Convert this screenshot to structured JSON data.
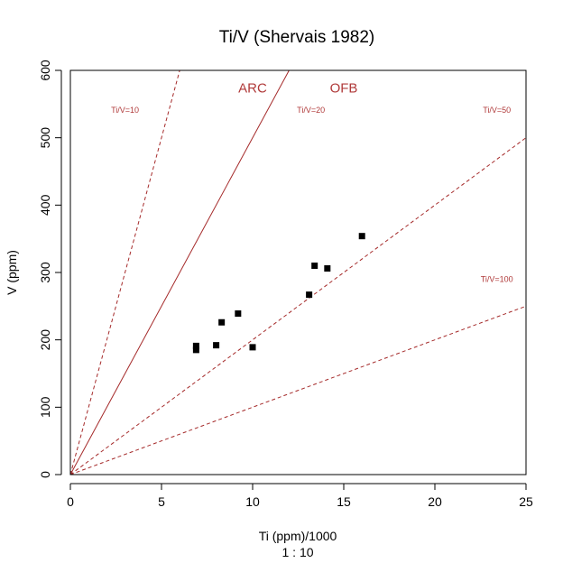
{
  "chart_data": {
    "type": "scatter",
    "title": "Ti/V (Shervais 1982)",
    "xlabel": "Ti (ppm)/1000",
    "xlabel_sub": "1 : 10",
    "ylabel": "V (ppm)",
    "xlim": [
      0,
      25
    ],
    "ylim": [
      0,
      600
    ],
    "xticks": [
      0,
      5,
      10,
      15,
      20,
      25
    ],
    "yticks": [
      0,
      100,
      200,
      300,
      400,
      500,
      600
    ],
    "grid": false,
    "colors": {
      "points": "#000000",
      "lines": "#a52a2a",
      "labels": "#b03a3a"
    },
    "points": [
      {
        "x": 6.9,
        "y": 191
      },
      {
        "x": 6.9,
        "y": 185
      },
      {
        "x": 8.0,
        "y": 192
      },
      {
        "x": 8.3,
        "y": 226
      },
      {
        "x": 9.2,
        "y": 239
      },
      {
        "x": 10.0,
        "y": 189
      },
      {
        "x": 13.1,
        "y": 267
      },
      {
        "x": 13.4,
        "y": 310
      },
      {
        "x": 14.1,
        "y": 306
      },
      {
        "x": 16.0,
        "y": 354
      }
    ],
    "reference_lines": [
      {
        "ratio": 10,
        "style": "dashed",
        "label": "Ti/V=10"
      },
      {
        "ratio": 20,
        "style": "solid",
        "label": "Ti/V=20"
      },
      {
        "ratio": 50,
        "style": "dashed",
        "label": "Ti/V=50"
      },
      {
        "ratio": 100,
        "style": "dashed",
        "label": "Ti/V=100"
      }
    ],
    "ratio_label_positions": [
      {
        "text": "Ti/V=10",
        "x": 3.0,
        "y": 537
      },
      {
        "text": "Ti/V=20",
        "x": 13.2,
        "y": 537
      },
      {
        "text": "Ti/V=50",
        "x": 23.4,
        "y": 537
      },
      {
        "text": "Ti/V=100",
        "x": 23.4,
        "y": 286
      }
    ],
    "regions": [
      {
        "text": "ARC",
        "x": 10.0,
        "y": 567
      },
      {
        "text": "OFB",
        "x": 15.0,
        "y": 567
      }
    ]
  }
}
